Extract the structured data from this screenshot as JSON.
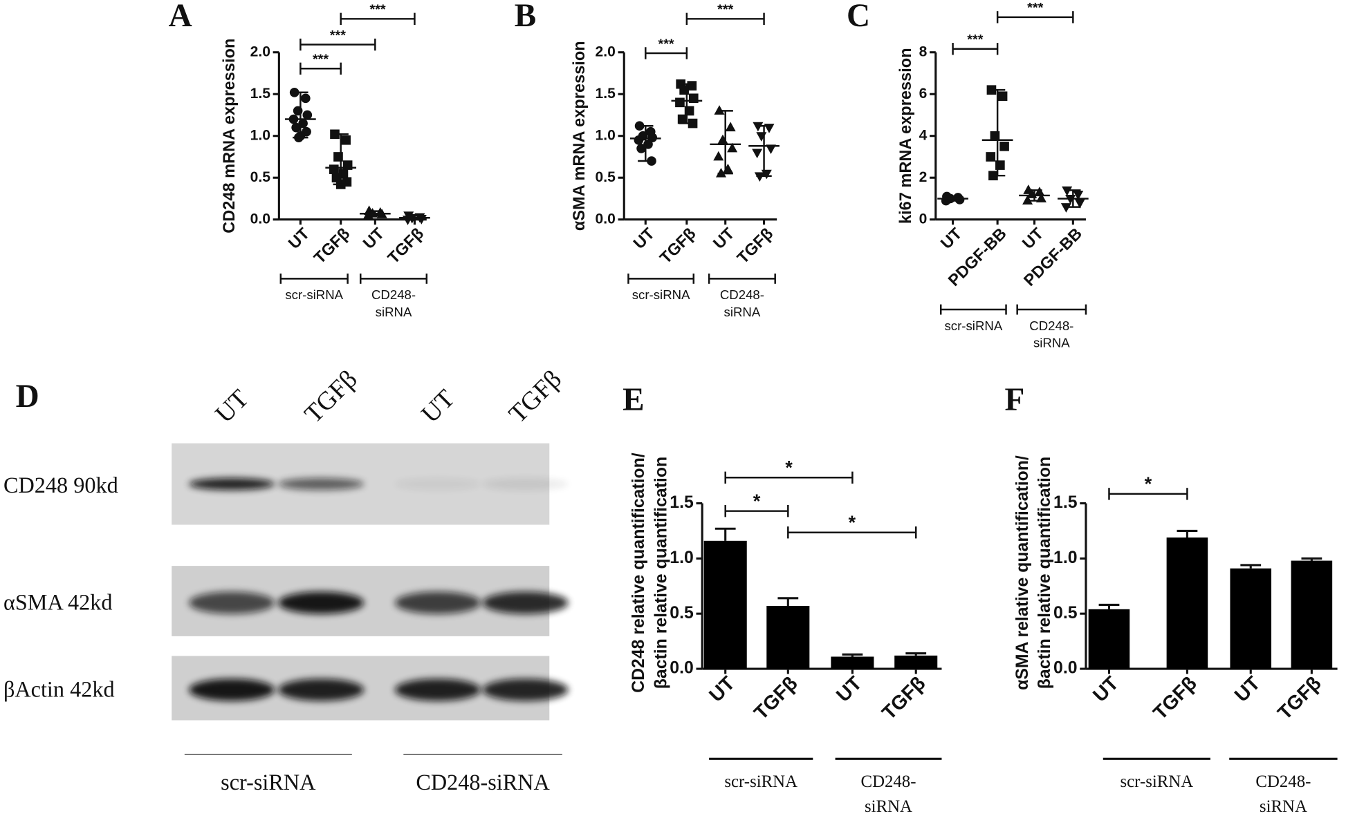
{
  "chart_data": [
    {
      "type": "dot",
      "label": "A",
      "ylabel": [
        "CD248 mRNA expression"
      ],
      "categories": [
        "UT",
        "TGFβ",
        "UT",
        "TGFβ"
      ],
      "markers": [
        "circle",
        "square",
        "triangle",
        "triangle-down"
      ],
      "points": [
        [
          1.52,
          1.45,
          1.3,
          1.25,
          1.2,
          1.15,
          1.1,
          1.05,
          1.0,
          0.98
        ],
        [
          1.02,
          0.95,
          0.75,
          0.65,
          0.6,
          0.55,
          0.5,
          0.45,
          0.42
        ],
        [
          0.1,
          0.08,
          0.07,
          0.06,
          0.05
        ],
        [
          0.05,
          0.03,
          0.02,
          0.01,
          0.0
        ]
      ],
      "values": [
        1.2,
        0.62,
        0.07,
        0.02
      ],
      "range": [
        [
          0.98,
          1.52
        ],
        [
          0.42,
          1.02
        ],
        [
          0.05,
          0.1
        ],
        [
          0.0,
          0.05
        ]
      ],
      "ylim": [
        0,
        2.0
      ],
      "yticks": [
        {
          "value": 0,
          "label": "0.0"
        },
        0.5,
        {
          "value": 1,
          "label": "1.0"
        },
        1.5,
        {
          "value": 2,
          "label": "2.0"
        }
      ],
      "brackets": [
        {
          "pair": [
            0,
            1
          ],
          "label": "***"
        },
        {
          "pair": [
            0,
            2
          ],
          "label": "***"
        },
        {
          "pair": [
            1,
            3
          ],
          "label": "***"
        }
      ],
      "groups": [
        {
          "span": [
            0,
            1
          ],
          "lines": [
            "scr-siRNA"
          ]
        },
        {
          "span": [
            2,
            3
          ],
          "lines": [
            "CD248-",
            "siRNA"
          ]
        }
      ]
    },
    {
      "type": "dot",
      "label": "B",
      "ylabel": [
        "αSMA mRNA expression"
      ],
      "categories": [
        "UT",
        "TGFβ",
        "UT",
        "TGFβ"
      ],
      "markers": [
        "circle",
        "square",
        "triangle",
        "triangle-down"
      ],
      "points": [
        [
          1.12,
          1.05,
          1.0,
          0.98,
          0.95,
          0.9,
          0.85,
          0.7
        ],
        [
          1.62,
          1.6,
          1.55,
          1.45,
          1.4,
          1.3,
          1.2,
          1.15
        ],
        [
          1.3,
          1.1,
          0.95,
          0.85,
          0.75,
          0.6,
          0.55
        ],
        [
          1.12,
          1.1,
          1.0,
          0.85,
          0.8,
          0.55,
          0.52
        ]
      ],
      "values": [
        0.97,
        1.42,
        0.9,
        0.88
      ],
      "range": [
        [
          0.7,
          1.12
        ],
        [
          1.15,
          1.62
        ],
        [
          0.55,
          1.3
        ],
        [
          0.52,
          1.12
        ]
      ],
      "ylim": [
        0,
        2.0
      ],
      "yticks": [
        {
          "value": 0,
          "label": "0.0"
        },
        0.5,
        {
          "value": 1,
          "label": "1.0"
        },
        1.5,
        {
          "value": 2,
          "label": "2.0"
        }
      ],
      "brackets": [
        {
          "pair": [
            0,
            1
          ],
          "label": "***"
        },
        {
          "pair": [
            1,
            3
          ],
          "label": "***"
        }
      ],
      "groups": [
        {
          "span": [
            0,
            1
          ],
          "lines": [
            "scr-siRNA"
          ]
        },
        {
          "span": [
            2,
            3
          ],
          "lines": [
            "CD248-",
            "siRNA"
          ]
        }
      ]
    },
    {
      "type": "dot",
      "label": "C",
      "ylabel": [
        "ki67 mRNA expression"
      ],
      "categories": [
        "UT",
        "PDGF-BB",
        "UT",
        "PDGF-BB"
      ],
      "markers": [
        "circle",
        "square",
        "triangle",
        "triangle-down"
      ],
      "points": [
        [
          1.1,
          1.05,
          1.0,
          0.95,
          0.9
        ],
        [
          6.2,
          5.9,
          4.0,
          3.5,
          3.0,
          2.6,
          2.1
        ],
        [
          1.4,
          1.3,
          1.2,
          1.0,
          0.9
        ],
        [
          1.4,
          1.2,
          1.0,
          0.8,
          0.6
        ]
      ],
      "values": [
        1.0,
        3.8,
        1.15,
        1.0
      ],
      "range": [
        [
          0.9,
          1.1
        ],
        [
          2.1,
          6.2
        ],
        [
          0.9,
          1.4
        ],
        [
          0.6,
          1.4
        ]
      ],
      "ylim": [
        0,
        8
      ],
      "yticks": [
        0,
        2,
        4,
        6,
        8
      ],
      "brackets": [
        {
          "pair": [
            0,
            1
          ],
          "label": "***"
        },
        {
          "pair": [
            1,
            3
          ],
          "label": "***"
        }
      ],
      "groups": [
        {
          "span": [
            0,
            1
          ],
          "lines": [
            "scr-siRNA"
          ]
        },
        {
          "span": [
            2,
            3
          ],
          "lines": [
            "CD248-",
            "siRNA"
          ]
        }
      ]
    },
    {
      "type": "bar",
      "label": "E",
      "ylabel": [
        "CD248 relative quantification/",
        "βactin relative quantification"
      ],
      "categories": [
        "UT",
        "TGFβ",
        "UT",
        "TGFβ"
      ],
      "values": [
        1.16,
        0.57,
        0.11,
        0.12
      ],
      "errors": [
        0.11,
        0.07,
        0.02,
        0.02
      ],
      "color": "#000000",
      "ylim": [
        0,
        1.5
      ],
      "yticks": [
        {
          "value": 0,
          "label": "0.0"
        },
        0.5,
        {
          "value": 1,
          "label": "1.0"
        },
        1.5
      ],
      "brackets": [
        {
          "pair": [
            0,
            1
          ],
          "label": "*"
        },
        {
          "pair": [
            0,
            2
          ],
          "label": "*"
        },
        {
          "pair": [
            1,
            3
          ],
          "label": "*"
        }
      ],
      "groups": [
        {
          "span": [
            0,
            1
          ],
          "lines": [
            "scr-siRNA"
          ]
        },
        {
          "span": [
            2,
            3
          ],
          "lines": [
            "CD248-",
            "siRNA"
          ]
        }
      ]
    },
    {
      "type": "bar",
      "label": "F",
      "ylabel": [
        "αSMA relative quantification/",
        "βactin relative quantification"
      ],
      "categories": [
        "UT",
        "TGFβ",
        "UT",
        "TGFβ"
      ],
      "values": [
        0.54,
        1.19,
        0.91,
        0.98
      ],
      "errors": [
        0.04,
        0.06,
        0.03,
        0.02
      ],
      "color": "#000000",
      "ylim": [
        0,
        1.5
      ],
      "yticks": [
        {
          "value": 0,
          "label": "0.0"
        },
        0.5,
        {
          "value": 1,
          "label": "1.0"
        },
        1.5
      ],
      "brackets": [
        {
          "pair": [
            0,
            1
          ],
          "label": "*"
        }
      ],
      "groups": [
        {
          "span": [
            0,
            1
          ],
          "lines": [
            "scr-siRNA"
          ]
        },
        {
          "span": [
            2,
            3
          ],
          "lines": [
            "CD248-",
            "siRNA"
          ]
        }
      ]
    }
  ],
  "blot": {
    "label": "D",
    "lanes": [
      "UT",
      "TGFβ",
      "UT",
      "TGFβ"
    ],
    "rows": [
      "CD248 90kd",
      "αSMA 42kd",
      "βActin 42kd"
    ],
    "groups": [
      "scr-siRNA",
      "CD248-siRNA"
    ]
  }
}
